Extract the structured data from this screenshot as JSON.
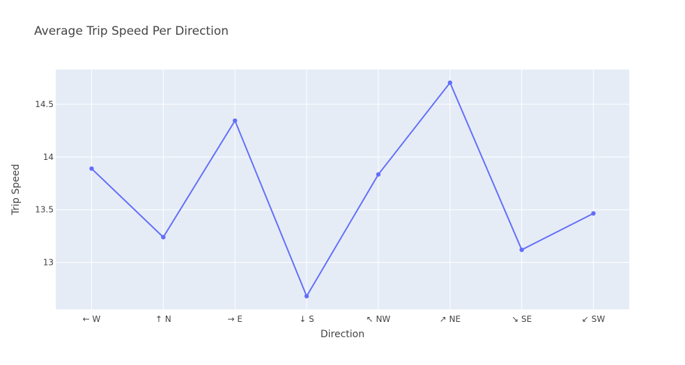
{
  "chart_data": {
    "type": "line",
    "title": "Average Trip Speed Per Direction",
    "xlabel": "Direction",
    "ylabel": "Trip Speed",
    "categories": [
      "← W",
      "↑ N",
      "→ E",
      "↓ S",
      "↖ NW",
      "↗ NE",
      "↘ SE",
      "↙ SW"
    ],
    "values": [
      13.89,
      13.24,
      14.345,
      12.68,
      13.835,
      14.705,
      13.12,
      13.465
    ],
    "ylim": [
      12.555,
      14.83
    ],
    "yticks": [
      13,
      13.5,
      14,
      14.5
    ],
    "ytick_labels": [
      "13",
      "13.5",
      "14",
      "14.5"
    ],
    "grid": true,
    "line_color": "#636efa",
    "plot_bg": "#e5ecf6",
    "grid_color": "#ffffff"
  }
}
